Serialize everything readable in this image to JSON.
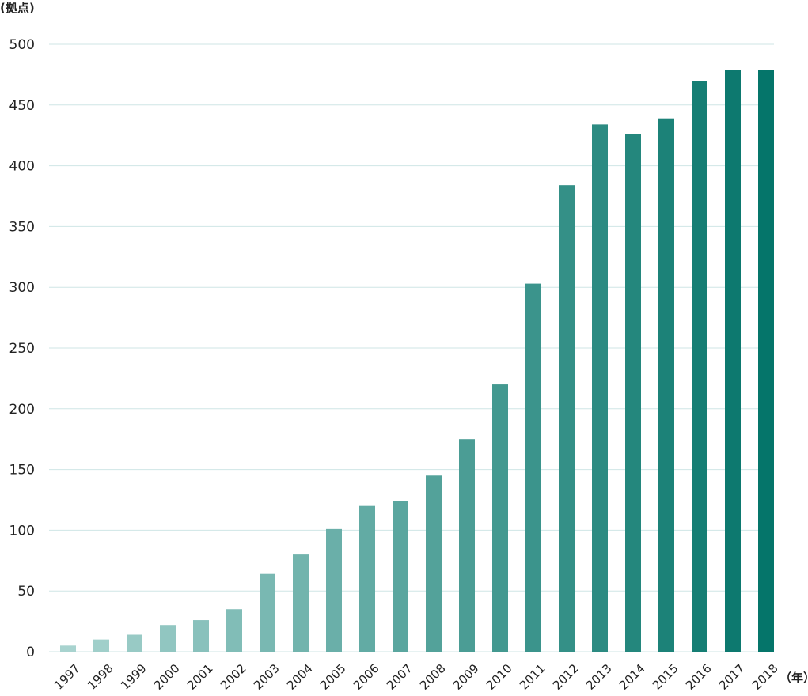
{
  "chart_data": {
    "type": "bar",
    "title": "",
    "ylabel": "(拠点)",
    "xlabel": "（年）",
    "categories": [
      "1997",
      "1998",
      "1999",
      "2000",
      "2001",
      "2002",
      "2003",
      "2004",
      "2005",
      "2006",
      "2007",
      "2008",
      "2009",
      "2010",
      "2011",
      "2012",
      "2013",
      "2014",
      "2015",
      "2016",
      "2017",
      "2018"
    ],
    "values": [
      5,
      10,
      14,
      22,
      26,
      35,
      64,
      80,
      101,
      120,
      124,
      145,
      175,
      220,
      303,
      384,
      434,
      426,
      439,
      470,
      479,
      479
    ],
    "ylim": [
      0,
      500
    ],
    "yticks": [
      0,
      50,
      100,
      150,
      200,
      250,
      300,
      350,
      400,
      450,
      500
    ],
    "grid": true,
    "legend": "none",
    "color_start": "#a8d3cf",
    "color_end": "#05756a"
  }
}
